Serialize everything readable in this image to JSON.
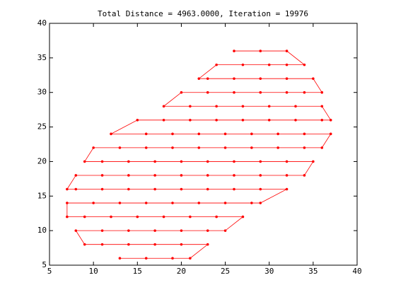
{
  "chart_data": {
    "type": "line",
    "title": "Total Distance = 4963.0000, Iteration = 19976",
    "color": "#ff0000",
    "markers": true,
    "x": [
      13,
      16,
      19,
      21,
      23,
      20,
      17,
      14,
      11,
      9,
      8,
      11,
      14,
      17,
      20,
      23,
      25,
      27,
      24,
      21,
      18,
      15,
      12,
      9,
      7,
      7,
      10,
      13,
      16,
      19,
      22,
      25,
      28,
      29,
      32,
      29,
      26,
      23,
      20,
      17,
      14,
      11,
      8,
      7,
      8,
      11,
      14,
      17,
      20,
      23,
      26,
      29,
      32,
      34,
      35,
      32,
      29,
      26,
      23,
      20,
      17,
      14,
      11,
      9,
      10,
      13,
      16,
      19,
      22,
      25,
      28,
      31,
      34,
      36,
      37,
      34,
      31,
      28,
      25,
      22,
      19,
      16,
      12,
      15,
      18,
      21,
      24,
      27,
      30,
      33,
      36,
      37,
      36,
      33,
      30,
      27,
      24,
      21,
      18,
      20,
      23,
      26,
      29,
      32,
      34,
      36,
      35,
      32,
      29,
      26,
      23,
      22,
      24,
      27,
      30,
      32,
      34,
      32,
      29,
      26
    ],
    "values": [
      6,
      6,
      6,
      6,
      8,
      8,
      8,
      8,
      8,
      8,
      10,
      10,
      10,
      10,
      10,
      10,
      10,
      12,
      12,
      12,
      12,
      12,
      12,
      12,
      12,
      14,
      14,
      14,
      14,
      14,
      14,
      14,
      14,
      14,
      16,
      16,
      16,
      16,
      16,
      16,
      16,
      16,
      16,
      16,
      18,
      18,
      18,
      18,
      18,
      18,
      18,
      18,
      18,
      18,
      20,
      20,
      20,
      20,
      20,
      20,
      20,
      20,
      20,
      20,
      22,
      22,
      22,
      22,
      22,
      22,
      22,
      22,
      22,
      22,
      24,
      24,
      24,
      24,
      24,
      24,
      24,
      24,
      24,
      26,
      26,
      26,
      26,
      26,
      26,
      26,
      26,
      26,
      28,
      28,
      28,
      28,
      28,
      28,
      28,
      30,
      30,
      30,
      30,
      30,
      30,
      30,
      32,
      32,
      32,
      32,
      32,
      32,
      34,
      34,
      34,
      34,
      34,
      36,
      36,
      36
    ],
    "xlim": [
      5,
      40
    ],
    "xticks": [
      5,
      10,
      15,
      20,
      25,
      30,
      35,
      40
    ],
    "ylim": [
      5,
      40
    ],
    "yticks": [
      5,
      10,
      15,
      20,
      25,
      30,
      35,
      40
    ]
  }
}
